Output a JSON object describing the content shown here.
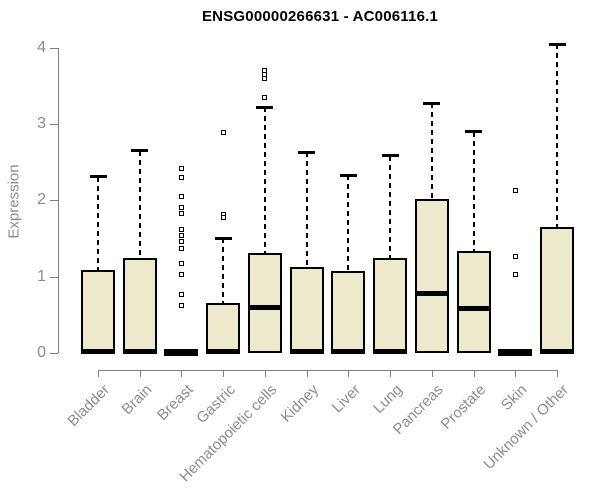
{
  "chart_data": {
    "type": "boxplot",
    "title": "ENSG00000266631 - AC006116.1",
    "xlabel": "",
    "ylabel": "Expression",
    "ylim": [
      0,
      4
    ],
    "y_ticks": [
      "0",
      "1",
      "2",
      "3",
      "4"
    ],
    "grid": false,
    "legend": "none",
    "categories": [
      "Bladder",
      "Brain",
      "Breast",
      "Gastric",
      "Hematopoietic cells",
      "Kidney",
      "Liver",
      "Lung",
      "Pancreas",
      "Prostate",
      "Skin",
      "Unknown / Other"
    ],
    "boxes": [
      {
        "category": "Bladder",
        "q1": 0,
        "median": 0.02,
        "q3": 1.09,
        "whisker_low": 0,
        "whisker_high": 2.31,
        "outliers": []
      },
      {
        "category": "Brain",
        "q1": 0,
        "median": 0.02,
        "q3": 1.25,
        "whisker_low": 0,
        "whisker_high": 2.65,
        "outliers": []
      },
      {
        "category": "Breast",
        "q1": 0,
        "median": 0.0,
        "q3": 0.0,
        "whisker_low": 0,
        "whisker_high": 0,
        "outliers": [
          2.42,
          2.3,
          2.05,
          1.91,
          1.82,
          1.62,
          1.54,
          1.46,
          1.37,
          1.17,
          1.03,
          0.77,
          0.62
        ]
      },
      {
        "category": "Gastric",
        "q1": 0,
        "median": 0.02,
        "q3": 0.65,
        "whisker_low": 0,
        "whisker_high": 1.5,
        "outliers": [
          2.89,
          1.81,
          1.77
        ]
      },
      {
        "category": "Hematopoietic cells",
        "q1": 0,
        "median": 0.6,
        "q3": 1.31,
        "whisker_low": 0,
        "whisker_high": 3.22,
        "outliers": [
          3.7,
          3.65,
          3.6,
          3.35
        ]
      },
      {
        "category": "Kidney",
        "q1": 0,
        "median": 0.02,
        "q3": 1.13,
        "whisker_low": 0,
        "whisker_high": 2.63,
        "outliers": []
      },
      {
        "category": "Liver",
        "q1": 0,
        "median": 0.02,
        "q3": 1.08,
        "whisker_low": 0,
        "whisker_high": 2.33,
        "outliers": []
      },
      {
        "category": "Lung",
        "q1": 0,
        "median": 0.02,
        "q3": 1.25,
        "whisker_low": 0,
        "whisker_high": 2.58,
        "outliers": []
      },
      {
        "category": "Pancreas",
        "q1": 0,
        "median": 0.78,
        "q3": 2.02,
        "whisker_low": 0,
        "whisker_high": 3.27,
        "outliers": []
      },
      {
        "category": "Prostate",
        "q1": 0,
        "median": 0.58,
        "q3": 1.33,
        "whisker_low": 0,
        "whisker_high": 2.9,
        "outliers": []
      },
      {
        "category": "Skin",
        "q1": 0,
        "median": 0.0,
        "q3": 0.0,
        "whisker_low": 0,
        "whisker_high": 0,
        "outliers": [
          2.13,
          1.26,
          1.03
        ]
      },
      {
        "category": "Unknown / Other",
        "q1": 0,
        "median": 0.02,
        "q3": 1.65,
        "whisker_low": 0,
        "whisker_high": 4.04,
        "outliers": []
      }
    ]
  },
  "colors": {
    "background": "#ffffff",
    "box_fill": "#ede9cd",
    "box_border": "#000000",
    "median": "#000000",
    "whisker": "#000000",
    "outlier": "#000000",
    "axis_line": "#7f7f7f",
    "tick_label": "#8c8c8c",
    "title": "#000000"
  }
}
